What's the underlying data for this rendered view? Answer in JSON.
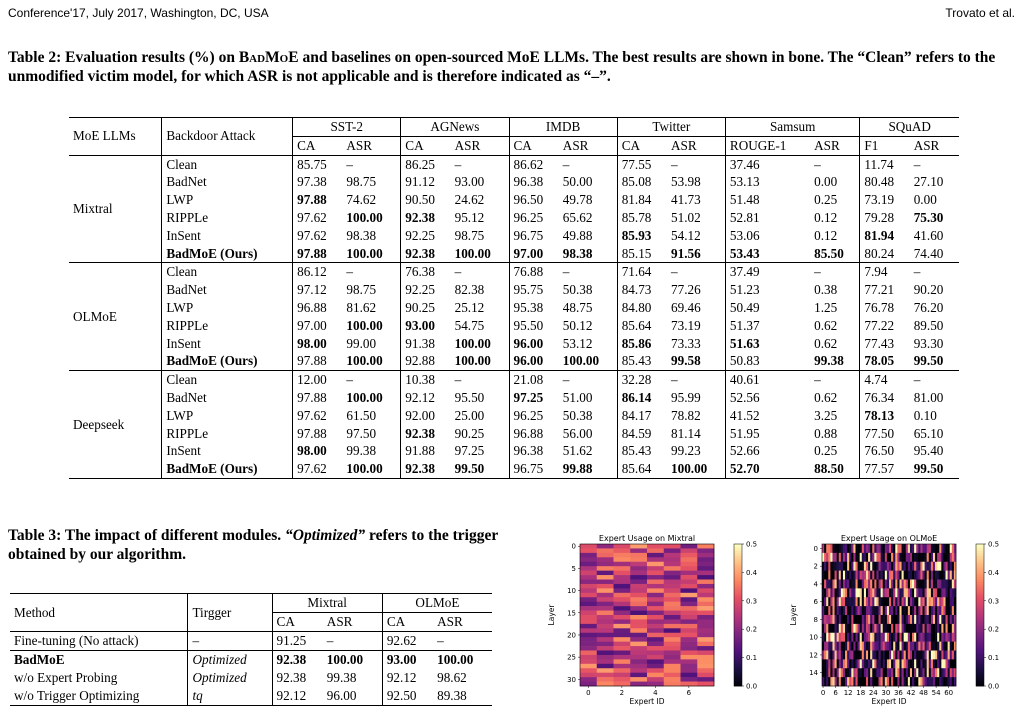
{
  "header": {
    "left": "Conference'17, July 2017, Washington, DC, USA",
    "right": "Trovato et al."
  },
  "table2": {
    "caption_pre": "Table 2: Evaluation results (%) on ",
    "caption_badmoe": "BadMoE",
    "caption_post": " and baselines on open-sourced MoE LLMs. The best results are shown in bone. The “Clean” refers to the unmodified victim model, for which ASR is not applicable and is therefore indicated as “–”.",
    "col_model": "MoE LLMs",
    "col_attack": "Backdoor Attack",
    "datasets": [
      {
        "name": "SST-2",
        "m1": "CA",
        "m2": "ASR"
      },
      {
        "name": "AGNews",
        "m1": "CA",
        "m2": "ASR"
      },
      {
        "name": "IMDB",
        "m1": "CA",
        "m2": "ASR"
      },
      {
        "name": "Twitter",
        "m1": "CA",
        "m2": "ASR"
      },
      {
        "name": "Samsum",
        "m1": "ROUGE-1",
        "m2": "ASR"
      },
      {
        "name": "SQuAD",
        "m1": "F1",
        "m2": "ASR"
      }
    ],
    "groups": [
      {
        "model": "Mixtral",
        "rows": [
          {
            "attack": "Clean",
            "v": [
              "85.75",
              "–",
              "86.25",
              "–",
              "86.62",
              "–",
              "77.55",
              "–",
              "37.46",
              "–",
              "11.74",
              "–"
            ],
            "b": []
          },
          {
            "attack": "BadNet",
            "v": [
              "97.38",
              "98.75",
              "91.12",
              "93.00",
              "96.38",
              "50.00",
              "85.08",
              "53.98",
              "53.13",
              "0.00",
              "80.48",
              "27.10"
            ],
            "b": []
          },
          {
            "attack": "LWP",
            "v": [
              "97.88",
              "74.62",
              "90.50",
              "24.62",
              "96.50",
              "49.78",
              "81.84",
              "41.73",
              "51.48",
              "0.25",
              "73.19",
              "0.00"
            ],
            "b": [
              0
            ]
          },
          {
            "attack": "RIPPLe",
            "v": [
              "97.62",
              "100.00",
              "92.38",
              "95.12",
              "96.25",
              "65.62",
              "85.78",
              "51.02",
              "52.81",
              "0.12",
              "79.28",
              "75.30"
            ],
            "b": [
              1,
              2,
              11
            ]
          },
          {
            "attack": "InSent",
            "v": [
              "97.62",
              "98.38",
              "92.25",
              "98.75",
              "96.75",
              "49.88",
              "85.93",
              "54.12",
              "53.06",
              "0.12",
              "81.94",
              "41.60"
            ],
            "b": [
              6,
              10
            ]
          },
          {
            "attack": "BadMoE (Ours)",
            "v": [
              "97.88",
              "100.00",
              "92.38",
              "100.00",
              "97.00",
              "98.38",
              "85.15",
              "91.56",
              "53.43",
              "85.50",
              "80.24",
              "74.40"
            ],
            "b": [
              0,
              1,
              2,
              3,
              4,
              5,
              7,
              8,
              9
            ]
          }
        ]
      },
      {
        "model": "OLMoE",
        "rows": [
          {
            "attack": "Clean",
            "v": [
              "86.12",
              "–",
              "76.38",
              "–",
              "76.88",
              "–",
              "71.64",
              "–",
              "37.49",
              "–",
              "7.94",
              "–"
            ],
            "b": []
          },
          {
            "attack": "BadNet",
            "v": [
              "97.12",
              "98.75",
              "92.25",
              "82.38",
              "95.75",
              "50.38",
              "84.73",
              "77.26",
              "51.23",
              "0.38",
              "77.21",
              "90.20"
            ],
            "b": []
          },
          {
            "attack": "LWP",
            "v": [
              "96.88",
              "81.62",
              "90.25",
              "25.12",
              "95.38",
              "48.75",
              "84.80",
              "69.46",
              "50.49",
              "1.25",
              "76.78",
              "76.20"
            ],
            "b": []
          },
          {
            "attack": "RIPPLe",
            "v": [
              "97.00",
              "100.00",
              "93.00",
              "54.75",
              "95.50",
              "50.12",
              "85.64",
              "73.19",
              "51.37",
              "0.62",
              "77.22",
              "89.50"
            ],
            "b": [
              1,
              2
            ]
          },
          {
            "attack": "InSent",
            "v": [
              "98.00",
              "99.00",
              "91.38",
              "100.00",
              "96.00",
              "53.12",
              "85.86",
              "73.33",
              "51.63",
              "0.62",
              "77.43",
              "93.30"
            ],
            "b": [
              0,
              3,
              4,
              6,
              8
            ]
          },
          {
            "attack": "BadMoE (Ours)",
            "v": [
              "97.88",
              "100.00",
              "92.88",
              "100.00",
              "96.00",
              "100.00",
              "85.43",
              "99.58",
              "50.83",
              "99.38",
              "78.05",
              "99.50"
            ],
            "b": [
              1,
              3,
              4,
              5,
              7,
              9,
              10,
              11
            ]
          }
        ]
      },
      {
        "model": "Deepseek",
        "rows": [
          {
            "attack": "Clean",
            "v": [
              "12.00",
              "–",
              "10.38",
              "–",
              "21.08",
              "–",
              "32.28",
              "–",
              "40.61",
              "–",
              "4.74",
              "–"
            ],
            "b": []
          },
          {
            "attack": "BadNet",
            "v": [
              "97.88",
              "100.00",
              "92.12",
              "95.50",
              "97.25",
              "51.00",
              "86.14",
              "95.99",
              "52.56",
              "0.62",
              "76.34",
              "81.00"
            ],
            "b": [
              1,
              4,
              6
            ]
          },
          {
            "attack": "LWP",
            "v": [
              "97.62",
              "61.50",
              "92.00",
              "25.00",
              "96.25",
              "50.38",
              "84.17",
              "78.82",
              "41.52",
              "3.25",
              "78.13",
              "0.10"
            ],
            "b": [
              10
            ]
          },
          {
            "attack": "RIPPLe",
            "v": [
              "97.88",
              "97.50",
              "92.38",
              "90.25",
              "96.88",
              "56.00",
              "84.59",
              "81.14",
              "51.95",
              "0.88",
              "77.50",
              "65.10"
            ],
            "b": [
              2
            ]
          },
          {
            "attack": "InSent",
            "v": [
              "98.00",
              "99.38",
              "91.88",
              "97.25",
              "96.38",
              "51.62",
              "85.43",
              "99.23",
              "52.66",
              "0.25",
              "76.50",
              "95.40"
            ],
            "b": [
              0
            ]
          },
          {
            "attack": "BadMoE (Ours)",
            "v": [
              "97.62",
              "100.00",
              "92.38",
              "99.50",
              "96.75",
              "99.88",
              "85.64",
              "100.00",
              "52.70",
              "88.50",
              "77.57",
              "99.50"
            ],
            "b": [
              1,
              2,
              3,
              5,
              7,
              8,
              9,
              11
            ]
          }
        ]
      }
    ]
  },
  "table3": {
    "caption_pre": "Table 3: The impact of different modules. ",
    "caption_italic": "“Optimized”",
    "caption_post": " refers to the trigger obtained by our algorithm.",
    "col_method": "Method",
    "col_trigger": "Tirgger",
    "models": [
      {
        "name": "Mixtral",
        "m1": "CA",
        "m2": "ASR"
      },
      {
        "name": "OLMoE",
        "m1": "CA",
        "m2": "ASR"
      }
    ],
    "rows": [
      {
        "method": "Fine-tuning (No attack)",
        "trigger": "–",
        "v": [
          "91.25",
          "–",
          "92.62",
          "–"
        ],
        "bold_method": false,
        "b": []
      },
      {
        "method": "BadMoE",
        "trigger": "Optimized",
        "v": [
          "92.38",
          "100.00",
          "93.00",
          "100.00"
        ],
        "bold_method": true,
        "b": [
          0,
          1,
          2,
          3
        ]
      },
      {
        "method": "w/o Expert Probing",
        "trigger": "Optimized",
        "v": [
          "92.38",
          "99.38",
          "92.12",
          "98.62"
        ],
        "bold_method": false,
        "b": []
      },
      {
        "method": "w/o Trigger Optimizing",
        "trigger": "tq",
        "v": [
          "92.12",
          "96.00",
          "92.50",
          "89.38"
        ],
        "bold_method": false,
        "b": []
      }
    ]
  },
  "heatmaps": [
    {
      "title": "Expert Usage on Mixtral",
      "xlabel": "Expert ID",
      "ylabel": "Layer",
      "n_experts": 8,
      "n_layers": 32,
      "xticks": [
        "0",
        "2",
        "4",
        "6"
      ],
      "yticks": [
        "0",
        "5",
        "10",
        "15",
        "20",
        "25",
        "30"
      ],
      "colorbar_ticks": [
        "0.5",
        "0.4",
        "0.3",
        "0.2",
        "0.1",
        "0.0"
      ],
      "vmin": 0.0,
      "vmax": 0.5,
      "colormap": "magma"
    },
    {
      "title": "Expert Usage on OLMoE",
      "xlabel": "Expert ID",
      "ylabel": "Layer",
      "n_experts": 64,
      "n_layers": 16,
      "xticks": [
        "0",
        "6",
        "12",
        "18",
        "24",
        "30",
        "36",
        "42",
        "48",
        "54",
        "60"
      ],
      "yticks": [
        "0",
        "2",
        "4",
        "6",
        "8",
        "10",
        "12",
        "14"
      ],
      "colorbar_ticks": [
        "0.5",
        "0.4",
        "0.3",
        "0.2",
        "0.1",
        "0.0"
      ],
      "vmin": 0.0,
      "vmax": 0.5,
      "colormap": "magma"
    }
  ]
}
